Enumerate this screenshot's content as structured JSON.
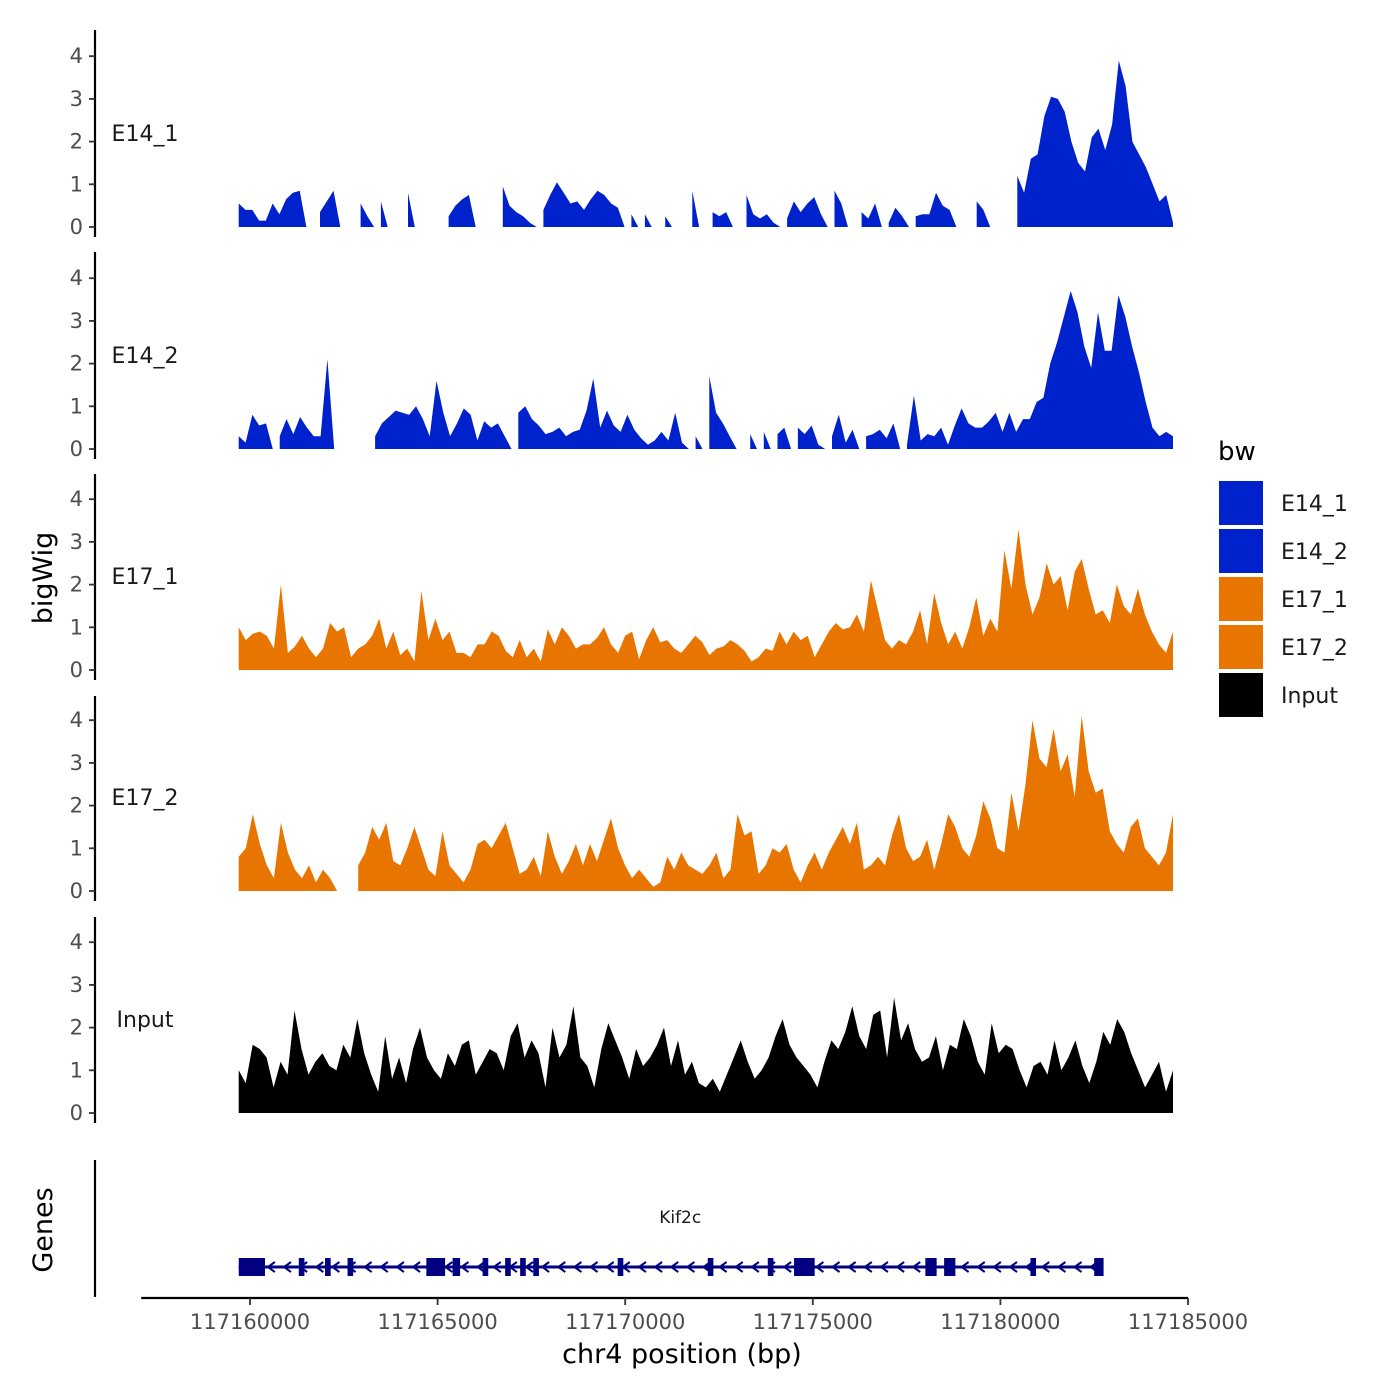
{
  "chart_data": {
    "type": "area",
    "title": "",
    "ylabel": "bigWig",
    "xlabel": "chr4 position (bp)",
    "xlim": [
      117157100,
      117185000
    ],
    "ylim": [
      0,
      4.5
    ],
    "x_ticks": [
      117160000,
      117165000,
      117170000,
      117175000,
      117180000,
      117185000
    ],
    "x_tick_labels": [
      "117160000",
      "117165000",
      "117170000",
      "117175000",
      "117180000",
      "117185000"
    ],
    "y_ticks": [
      0,
      1,
      2,
      3,
      4
    ],
    "y_tick_labels": [
      "0",
      "1",
      "2",
      "3",
      "4"
    ],
    "signal_range": [
      117159700,
      117184600
    ],
    "legend": {
      "title": "bw",
      "position": "right",
      "entries": [
        {
          "label": "E14_1",
          "color": "#0022cc"
        },
        {
          "label": "E14_2",
          "color": "#0022cc"
        },
        {
          "label": "E17_1",
          "color": "#e87500"
        },
        {
          "label": "E17_2",
          "color": "#e87500"
        },
        {
          "label": "Input",
          "color": "#000000"
        }
      ]
    },
    "series": [
      {
        "name": "E14_1",
        "color": "#0022cc",
        "values": [
          0.55,
          0.4,
          0.4,
          0.15,
          0.15,
          0.55,
          0.3,
          0.65,
          0.8,
          0.85,
          0,
          0,
          0.35,
          0.6,
          0.85,
          0,
          0,
          0,
          0.55,
          0.25,
          0,
          0.6,
          0,
          0,
          0,
          0.8,
          0,
          0,
          0,
          0,
          0,
          0.25,
          0.5,
          0.65,
          0.75,
          0,
          0,
          0,
          0,
          0.95,
          0.5,
          0.35,
          0.25,
          0.1,
          0,
          0.4,
          0.75,
          1.05,
          0.8,
          0.55,
          0.6,
          0.4,
          0.65,
          0.85,
          0.75,
          0.55,
          0.45,
          0,
          0.3,
          0,
          0.3,
          0,
          0,
          0.25,
          0,
          0,
          0,
          0.85,
          0,
          0,
          0.35,
          0.25,
          0.35,
          0,
          0,
          0.75,
          0.3,
          0.2,
          0.3,
          0.1,
          0,
          0.2,
          0.6,
          0.35,
          0.55,
          0.7,
          0.3,
          0,
          0.85,
          0.55,
          0,
          0,
          0.35,
          0.2,
          0.55,
          0,
          0.1,
          0.45,
          0.25,
          0,
          0.25,
          0.3,
          0.3,
          0.8,
          0.5,
          0.4,
          0,
          0,
          0,
          0.6,
          0.4,
          0,
          0,
          0,
          0,
          1.2,
          0.8,
          1.6,
          1.7,
          2.6,
          3.05,
          3.0,
          2.7,
          2.0,
          1.5,
          1.3,
          2.1,
          2.3,
          1.8,
          2.4,
          3.9,
          3.3,
          2.0,
          1.7,
          1.4,
          1.0,
          0.6,
          0.75,
          0.1
        ],
        "bins_x": null
      },
      {
        "name": "E14_2",
        "color": "#0022cc",
        "values": [
          0.3,
          0.15,
          0.8,
          0.55,
          0.6,
          0,
          0.3,
          0.7,
          0.35,
          0.75,
          0.5,
          0.3,
          0.3,
          2.1,
          0,
          0,
          0,
          0,
          0,
          0,
          0.3,
          0.6,
          0.75,
          0.9,
          0.85,
          0.8,
          1.0,
          0.7,
          0.3,
          1.6,
          0.85,
          0.3,
          0.6,
          0.95,
          0.8,
          0.2,
          0.65,
          0.5,
          0.6,
          0.3,
          0,
          0.85,
          1.0,
          0.7,
          0.55,
          0.35,
          0.4,
          0.5,
          0.3,
          0.4,
          0.45,
          0.9,
          1.65,
          0.5,
          0.9,
          0.55,
          0.4,
          0.8,
          0.45,
          0.25,
          0.1,
          0.2,
          0.4,
          0.2,
          0.85,
          0.15,
          0,
          0.3,
          0,
          1.7,
          0.85,
          0.6,
          0.3,
          0,
          0,
          0.35,
          0,
          0.4,
          0,
          0.35,
          0.5,
          0,
          0.5,
          0.35,
          0.55,
          0.1,
          0,
          0.3,
          0.8,
          0.15,
          0.45,
          0,
          0.3,
          0.35,
          0.45,
          0.25,
          0.6,
          0,
          0.1,
          1.25,
          0.2,
          0.35,
          0.3,
          0.5,
          0.1,
          0.55,
          0.95,
          0.6,
          0.5,
          0.5,
          0.65,
          0.85,
          0.4,
          0.85,
          0.4,
          0.7,
          0.7,
          1.1,
          1.2,
          2.0,
          2.5,
          3.1,
          3.7,
          3.2,
          2.4,
          1.9,
          3.2,
          2.3,
          2.3,
          3.6,
          3.1,
          2.4,
          1.8,
          1.1,
          0.5,
          0.3,
          0.4,
          0.3
        ],
        "bins_x": null
      },
      {
        "name": "E17_1",
        "color": "#e87500",
        "values": [
          1.0,
          0.7,
          0.85,
          0.9,
          0.8,
          0.5,
          2.0,
          0.4,
          0.55,
          0.8,
          0.5,
          0.3,
          0.5,
          1.1,
          0.9,
          1.0,
          0.3,
          0.5,
          0.6,
          0.8,
          1.2,
          0.5,
          0.9,
          0.35,
          0.5,
          0.2,
          1.85,
          0.7,
          1.2,
          0.7,
          0.9,
          0.4,
          0.4,
          0.3,
          0.6,
          0.6,
          0.9,
          0.8,
          0.45,
          0.3,
          0.7,
          0.3,
          0.5,
          0.2,
          0.95,
          0.6,
          1.0,
          0.8,
          0.5,
          0.6,
          0.6,
          0.75,
          1.0,
          0.6,
          0.4,
          0.8,
          0.9,
          0.25,
          0.7,
          1.0,
          0.65,
          0.7,
          0.5,
          0.4,
          0.6,
          0.8,
          0.65,
          0.35,
          0.5,
          0.55,
          0.7,
          0.6,
          0.45,
          0.2,
          0.3,
          0.5,
          0.45,
          0.9,
          0.6,
          0.9,
          0.7,
          0.8,
          0.3,
          0.6,
          0.9,
          1.1,
          0.95,
          1.0,
          1.3,
          0.9,
          2.1,
          1.4,
          0.7,
          0.5,
          0.7,
          0.6,
          0.9,
          1.4,
          0.6,
          1.8,
          1.1,
          0.6,
          0.9,
          0.5,
          1.0,
          1.7,
          0.8,
          1.2,
          0.9,
          2.8,
          1.9,
          3.3,
          2.0,
          1.3,
          1.7,
          2.5,
          2.0,
          2.2,
          1.4,
          2.3,
          2.6,
          1.9,
          1.3,
          1.4,
          1.1,
          2.0,
          1.5,
          1.3,
          1.9,
          1.3,
          0.9,
          0.6,
          0.4,
          0.9
        ],
        "bins_x": null
      },
      {
        "name": "E17_2",
        "color": "#e87500",
        "values": [
          0.8,
          1.0,
          1.8,
          1.1,
          0.6,
          0.3,
          1.6,
          0.9,
          0.5,
          0.3,
          0.6,
          0.2,
          0.5,
          0.3,
          0,
          0,
          0,
          0.6,
          0.9,
          1.5,
          1.2,
          1.6,
          0.7,
          0.6,
          1.0,
          1.5,
          1.0,
          0.5,
          0.35,
          1.4,
          0.6,
          0.4,
          0.2,
          0.5,
          1.1,
          1.2,
          1.0,
          1.3,
          1.6,
          1.0,
          0.4,
          0.5,
          0.8,
          0.35,
          1.4,
          0.8,
          0.4,
          0.7,
          1.1,
          0.6,
          1.1,
          0.7,
          1.2,
          1.7,
          1.0,
          0.6,
          0.3,
          0.5,
          0.3,
          0.1,
          0.2,
          0.8,
          0.5,
          0.9,
          0.6,
          0.5,
          0.4,
          0.6,
          0.9,
          0.3,
          0.5,
          1.8,
          1.3,
          1.4,
          0.4,
          0.6,
          1.0,
          0.9,
          1.1,
          0.5,
          0.2,
          0.6,
          0.9,
          0.5,
          0.9,
          1.2,
          1.5,
          1.1,
          1.6,
          0.5,
          0.6,
          0.8,
          0.6,
          1.3,
          1.8,
          1.0,
          0.7,
          0.8,
          1.2,
          0.5,
          1.1,
          1.8,
          1.5,
          1.0,
          0.8,
          1.3,
          2.1,
          1.7,
          1.0,
          0.9,
          2.3,
          1.4,
          2.5,
          4.0,
          3.1,
          2.9,
          3.8,
          2.8,
          3.2,
          2.2,
          4.1,
          2.8,
          2.3,
          2.4,
          1.4,
          1.1,
          0.9,
          1.5,
          1.7,
          1.0,
          0.8,
          0.6,
          0.9,
          1.8
        ],
        "bins_x": null
      },
      {
        "name": "Input",
        "color": "#000000",
        "values": [
          1.0,
          0.7,
          1.6,
          1.5,
          1.3,
          0.6,
          1.2,
          0.9,
          2.4,
          1.5,
          0.9,
          1.2,
          1.4,
          1.1,
          1.0,
          1.6,
          1.3,
          2.2,
          1.4,
          0.9,
          0.5,
          1.8,
          0.8,
          1.3,
          0.7,
          1.5,
          2.0,
          1.3,
          1.0,
          0.8,
          1.4,
          1.1,
          1.6,
          1.7,
          0.9,
          1.2,
          1.5,
          1.4,
          1.0,
          1.8,
          2.1,
          1.3,
          1.7,
          1.4,
          0.6,
          2.0,
          1.3,
          1.6,
          2.5,
          1.3,
          1.1,
          0.6,
          1.5,
          2.1,
          1.7,
          1.3,
          0.8,
          1.5,
          1.1,
          1.3,
          1.6,
          2.0,
          1.1,
          1.7,
          0.9,
          1.2,
          0.7,
          0.6,
          0.8,
          0.5,
          0.9,
          1.3,
          1.7,
          1.2,
          0.8,
          1.0,
          1.3,
          1.8,
          2.2,
          1.6,
          1.3,
          1.1,
          0.9,
          0.6,
          1.2,
          1.7,
          1.5,
          1.9,
          2.5,
          1.8,
          1.5,
          2.3,
          2.4,
          1.3,
          2.7,
          1.7,
          2.1,
          1.5,
          1.2,
          1.3,
          1.8,
          1.0,
          1.6,
          1.5,
          2.2,
          1.8,
          1.2,
          0.9,
          2.1,
          1.4,
          1.6,
          1.5,
          1.0,
          0.6,
          1.1,
          1.2,
          0.9,
          1.7,
          1.0,
          1.3,
          1.7,
          1.1,
          0.7,
          1.2,
          1.9,
          1.6,
          2.2,
          1.9,
          1.4,
          1.0,
          0.6,
          0.9,
          1.2,
          0.5,
          1.0
        ],
        "bins_x": null
      }
    ],
    "genes_track": {
      "label": "Genes",
      "gene_name": "Kif2c",
      "strand": "-",
      "start": 117159700,
      "end": 117182700,
      "color": "#000080",
      "exons": [
        [
          117159700,
          117160400
        ],
        [
          117161300,
          117161450
        ],
        [
          117162000,
          117162150
        ],
        [
          117162600,
          117162750
        ],
        [
          117164700,
          117165200
        ],
        [
          117165400,
          117165600
        ],
        [
          117166200,
          117166350
        ],
        [
          117166800,
          117166950
        ],
        [
          117167200,
          117167350
        ],
        [
          117167550,
          117167700
        ],
        [
          117169800,
          117169950
        ],
        [
          117172200,
          117172350
        ],
        [
          117173800,
          117173950
        ],
        [
          117174500,
          117175050
        ],
        [
          117178000,
          117178300
        ],
        [
          117178500,
          117178800
        ],
        [
          117180800,
          117180950
        ],
        [
          117182500,
          117182750
        ]
      ]
    }
  }
}
